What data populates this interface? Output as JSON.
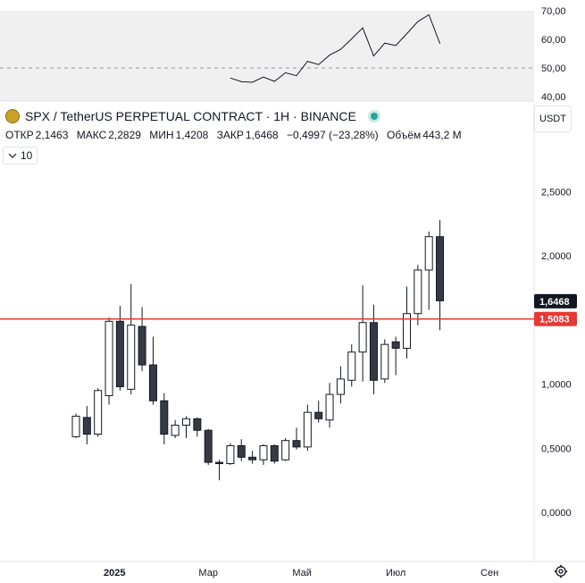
{
  "header": {
    "title": "SPX / TetherUS PERPETUAL CONTRACT · 1Н · BINANCE",
    "ohlc": [
      {
        "label": "ОТКР",
        "value": "2,1463"
      },
      {
        "label": "МАКС",
        "value": "2,2829"
      },
      {
        "label": "МИН",
        "value": "1,4208"
      },
      {
        "label": "ЗАКР",
        "value": "1,6468"
      }
    ],
    "change": "−0,4997 (−23,28%)",
    "volume_label": "Объём",
    "volume_value": "443,2 M",
    "indicator_button": "10",
    "currency_button": "USDT"
  },
  "colors": {
    "up_fill": "#ffffff",
    "down_fill": "#363a45",
    "candle_border": "#131722",
    "horizontal_line": "#e53935",
    "price_label_bg": "#131722",
    "line_label_bg": "#e53935",
    "rsi_bg": "#f0f0f0"
  },
  "icons": {
    "logo": "coin-logo-icon",
    "live": "live-status-dot-icon",
    "settings": "gear-icon"
  },
  "chart_data": [
    {
      "type": "candlestick",
      "interval": "1W",
      "y_ticks": [
        "2,5000",
        "2,0000",
        "1,5000",
        "1,0000",
        "0,5000",
        "0,0000"
      ],
      "y_tick_values": [
        2.5,
        2.0,
        1.5,
        1.0,
        0.5,
        0.0
      ],
      "x_ticks": [
        {
          "label": "2025",
          "index": 3.5
        },
        {
          "label": "Мар",
          "index": 12
        },
        {
          "label": "Май",
          "index": 20.5
        },
        {
          "label": "Июл",
          "index": 29
        },
        {
          "label": "Сен",
          "index": 37.5
        }
      ],
      "candles": [
        {
          "o": 0.59,
          "h": 0.77,
          "l": 0.58,
          "c": 0.75
        },
        {
          "o": 0.74,
          "h": 0.83,
          "l": 0.53,
          "c": 0.61
        },
        {
          "o": 0.61,
          "h": 0.97,
          "l": 0.59,
          "c": 0.95
        },
        {
          "o": 0.91,
          "h": 1.52,
          "l": 0.84,
          "c": 1.49
        },
        {
          "o": 1.49,
          "h": 1.61,
          "l": 0.95,
          "c": 0.98
        },
        {
          "o": 0.96,
          "h": 1.78,
          "l": 0.92,
          "c": 1.46
        },
        {
          "o": 1.45,
          "h": 1.6,
          "l": 1.1,
          "c": 1.15
        },
        {
          "o": 1.15,
          "h": 1.37,
          "l": 0.84,
          "c": 0.87
        },
        {
          "o": 0.87,
          "h": 0.93,
          "l": 0.53,
          "c": 0.61
        },
        {
          "o": 0.6,
          "h": 0.72,
          "l": 0.58,
          "c": 0.68
        },
        {
          "o": 0.68,
          "h": 0.75,
          "l": 0.58,
          "c": 0.73
        },
        {
          "o": 0.73,
          "h": 0.74,
          "l": 0.59,
          "c": 0.64
        },
        {
          "o": 0.64,
          "h": 0.65,
          "l": 0.37,
          "c": 0.39
        },
        {
          "o": 0.39,
          "h": 0.41,
          "l": 0.25,
          "c": 0.38
        },
        {
          "o": 0.38,
          "h": 0.54,
          "l": 0.37,
          "c": 0.52
        },
        {
          "o": 0.52,
          "h": 0.57,
          "l": 0.4,
          "c": 0.43
        },
        {
          "o": 0.43,
          "h": 0.48,
          "l": 0.38,
          "c": 0.41
        },
        {
          "o": 0.41,
          "h": 0.53,
          "l": 0.37,
          "c": 0.52
        },
        {
          "o": 0.52,
          "h": 0.53,
          "l": 0.38,
          "c": 0.4
        },
        {
          "o": 0.41,
          "h": 0.58,
          "l": 0.4,
          "c": 0.56
        },
        {
          "o": 0.56,
          "h": 0.66,
          "l": 0.49,
          "c": 0.51
        },
        {
          "o": 0.51,
          "h": 0.84,
          "l": 0.48,
          "c": 0.78
        },
        {
          "o": 0.78,
          "h": 0.87,
          "l": 0.7,
          "c": 0.73
        },
        {
          "o": 0.72,
          "h": 1.01,
          "l": 0.66,
          "c": 0.92
        },
        {
          "o": 0.92,
          "h": 1.14,
          "l": 0.85,
          "c": 1.04
        },
        {
          "o": 1.03,
          "h": 1.31,
          "l": 0.98,
          "c": 1.25
        },
        {
          "o": 1.25,
          "h": 1.77,
          "l": 1.02,
          "c": 1.48
        },
        {
          "o": 1.48,
          "h": 1.62,
          "l": 0.92,
          "c": 1.03
        },
        {
          "o": 1.04,
          "h": 1.35,
          "l": 1.01,
          "c": 1.31
        },
        {
          "o": 1.33,
          "h": 1.37,
          "l": 1.07,
          "c": 1.28
        },
        {
          "o": 1.28,
          "h": 1.76,
          "l": 1.2,
          "c": 1.55
        },
        {
          "o": 1.55,
          "h": 1.93,
          "l": 1.46,
          "c": 1.89
        },
        {
          "o": 1.89,
          "h": 2.19,
          "l": 1.58,
          "c": 2.15
        },
        {
          "o": 2.15,
          "h": 2.28,
          "l": 1.42,
          "c": 1.65
        }
      ],
      "last_price": {
        "value": 1.6468,
        "label": "1,6468"
      },
      "horizontal_line": {
        "value": 1.5083,
        "label": "1,5083"
      }
    },
    {
      "type": "line",
      "pane": "oscillator",
      "y_ticks": [
        "70,00",
        "60,00",
        "50,00",
        "40,00"
      ],
      "y_tick_values": [
        70,
        60,
        50,
        40
      ],
      "reference_line": 50,
      "start_index": 14,
      "values": [
        46.5,
        45.2,
        45.0,
        46.8,
        45.3,
        48.3,
        47.3,
        52.3,
        51.2,
        54.5,
        56.5,
        60.2,
        64.0,
        54.2,
        58.7,
        57.8,
        62.0,
        66.2,
        68.6,
        58.5
      ]
    }
  ]
}
